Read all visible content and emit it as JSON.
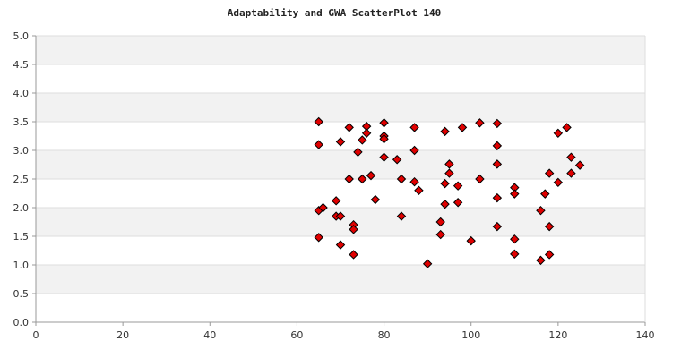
{
  "chart_data": {
    "type": "scatter",
    "title": "Adaptability and GWA ScatterPlot 140",
    "xlabel": "",
    "ylabel": "",
    "xlim": [
      0,
      140
    ],
    "ylim": [
      0,
      5
    ],
    "x_ticks": [
      "0",
      "20",
      "40",
      "60",
      "80",
      "100",
      "120",
      "140"
    ],
    "y_ticks": [
      "0.0",
      "0.5",
      "1.0",
      "1.5",
      "2.0",
      "2.5",
      "3.0",
      "3.5",
      "4.0",
      "4.5",
      "5.0"
    ],
    "grid": "horizontal, alternating bands",
    "legend": "none",
    "colors": {
      "point_fill": "#e00000",
      "point_stroke": "#000000",
      "band_fill": "#f2f2f2",
      "plot_bg": "#ffffff",
      "grid": "#dddddd"
    },
    "marker": "diamond",
    "points": [
      [
        65,
        3.5
      ],
      [
        65,
        3.1
      ],
      [
        65,
        1.95
      ],
      [
        66,
        2.0
      ],
      [
        65,
        1.48
      ],
      [
        69,
        2.12
      ],
      [
        69,
        1.85
      ],
      [
        70,
        1.85
      ],
      [
        70,
        3.15
      ],
      [
        70,
        1.35
      ],
      [
        72,
        3.4
      ],
      [
        72,
        2.5
      ],
      [
        73,
        1.7
      ],
      [
        73,
        1.62
      ],
      [
        73,
        1.18
      ],
      [
        74,
        2.97
      ],
      [
        75,
        3.18
      ],
      [
        75,
        2.5
      ],
      [
        76,
        3.42
      ],
      [
        76,
        3.3
      ],
      [
        77,
        2.56
      ],
      [
        78,
        2.14
      ],
      [
        80,
        3.48
      ],
      [
        80,
        3.25
      ],
      [
        80,
        3.2
      ],
      [
        80,
        2.88
      ],
      [
        83,
        2.84
      ],
      [
        84,
        2.5
      ],
      [
        84,
        1.85
      ],
      [
        87,
        3.4
      ],
      [
        87,
        3.0
      ],
      [
        87,
        2.45
      ],
      [
        88,
        2.3
      ],
      [
        90,
        1.02
      ],
      [
        93,
        1.75
      ],
      [
        93,
        1.53
      ],
      [
        94,
        3.33
      ],
      [
        94,
        2.42
      ],
      [
        94,
        2.06
      ],
      [
        95,
        2.76
      ],
      [
        95,
        2.6
      ],
      [
        97,
        2.38
      ],
      [
        97,
        2.09
      ],
      [
        98,
        3.4
      ],
      [
        100,
        1.42
      ],
      [
        102,
        3.48
      ],
      [
        102,
        2.5
      ],
      [
        106,
        3.47
      ],
      [
        106,
        3.08
      ],
      [
        106,
        2.76
      ],
      [
        106,
        2.17
      ],
      [
        106,
        1.67
      ],
      [
        110,
        2.35
      ],
      [
        110,
        2.24
      ],
      [
        110,
        1.45
      ],
      [
        110,
        1.19
      ],
      [
        116,
        1.95
      ],
      [
        116,
        1.08
      ],
      [
        117,
        2.24
      ],
      [
        118,
        2.6
      ],
      [
        118,
        1.67
      ],
      [
        118,
        1.18
      ],
      [
        120,
        3.3
      ],
      [
        120,
        2.44
      ],
      [
        122,
        3.4
      ],
      [
        123,
        2.88
      ],
      [
        123,
        2.6
      ],
      [
        125,
        2.74
      ]
    ]
  }
}
